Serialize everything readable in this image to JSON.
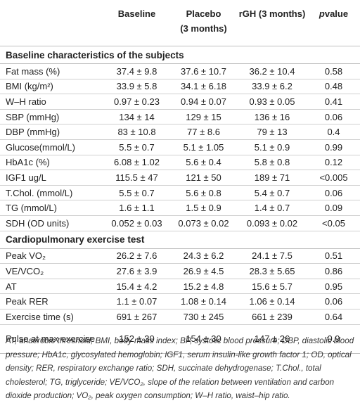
{
  "header": {
    "baseline": "Baseline",
    "placebo": "Placebo\n(3 months)",
    "rgh": "rGH (3 months)",
    "p_italic": "p",
    "p_rest": "value"
  },
  "sections": [
    {
      "title": "Baseline characteristics of the subjects",
      "rows": [
        {
          "name": "Fat mass (%)",
          "baseline": "37.4 ± 9.8",
          "placebo": "37.6 ± 10.7",
          "rgh": "36.2 ± 10.4",
          "p": "0.58"
        },
        {
          "name": "BMI (kg/m²)",
          "baseline": "33.9 ± 5.8",
          "placebo": "34.1 ± 6.18",
          "rgh": "33.9 ± 6.2",
          "p": "0.48"
        },
        {
          "name": "W–H ratio",
          "baseline": "0.97 ± 0.23",
          "placebo": "0.94 ± 0.07",
          "rgh": "0.93 ± 0.05",
          "p": "0.41"
        },
        {
          "name": "SBP (mmHg)",
          "baseline": "134 ± 14",
          "placebo": "129 ± 15",
          "rgh": "136 ± 16",
          "p": "0.06"
        },
        {
          "name": "DBP (mmHg)",
          "baseline": "83 ± 10.8",
          "placebo": "77 ± 8.6",
          "rgh": "79 ± 13",
          "p": "0.4"
        },
        {
          "name": "Glucose(mmol/L)",
          "baseline": "5.5 ± 0.7",
          "placebo": "5.1 ± 1.05",
          "rgh": "5.1 ± 0.9",
          "p": "0.99"
        },
        {
          "name": "HbA1c (%)",
          "baseline": "6.08 ± 1.02",
          "placebo": "5.6 ± 0.4",
          "rgh": "5.8 ± 0.8",
          "p": "0.12"
        },
        {
          "name": "IGF1 ug/L",
          "baseline": "115.5 ± 47",
          "placebo": "121 ± 50",
          "rgh": "189 ± 71",
          "p": "<0.005"
        },
        {
          "name": "T.Chol. (mmol/L)",
          "baseline": "5.5 ± 0.7",
          "placebo": "5.6 ± 0.8",
          "rgh": "5.4 ± 0.7",
          "p": "0.06"
        },
        {
          "name": "TG (mmol/L)",
          "baseline": "1.6 ± 1.1",
          "placebo": "1.5 ± 0.9",
          "rgh": "1.4 ± 0.7",
          "p": "0.09"
        },
        {
          "name": "SDH (OD units)",
          "baseline": "0.052 ± 0.03",
          "placebo": "0.073 ± 0.02",
          "rgh": "0.093 ± 0.02",
          "p": "<0.05"
        }
      ]
    },
    {
      "title": "Cardiopulmonary exercise test",
      "rows": [
        {
          "name": "Peak VO₂",
          "baseline": "26.2 ± 7.6",
          "placebo": "24.3 ± 6.2",
          "rgh": "24.1 ± 7.5",
          "p": "0.51"
        },
        {
          "name": "VE/VCO₂",
          "baseline": "27.6 ± 3.9",
          "placebo": "26.9 ± 4.5",
          "rgh": "28.3 ± 5.65",
          "p": "0.86"
        },
        {
          "name": "AT",
          "baseline": "15.4 ± 4.2",
          "placebo": "15.2 ± 4.8",
          "rgh": "15.6 ± 5.7",
          "p": "0.95"
        },
        {
          "name": "Peak RER",
          "baseline": "1.1 ± 0.07",
          "placebo": "1.08 ± 0.14",
          "rgh": "1.06 ± 0.14",
          "p": "0.06"
        },
        {
          "name": "Exercise time (s)",
          "baseline": "691 ± 267",
          "placebo": "730 ± 245",
          "rgh": "661 ± 239",
          "p": "0.64"
        },
        {
          "name": "Pulse at max exercise",
          "baseline": "152 ± 30",
          "placebo": "154 ± 30",
          "rgh": "147 ± 26",
          "p": "0.9"
        }
      ]
    }
  ],
  "footnote": "AT, anaerobic threshold; BMI, body mass index; BP, systolic blood pressure; DBP, diastolic blood pressure; HbA1c, glycosylated hemoglobin; IGF1, serum insulin-like growth factor 1; OD, optical density; RER, respiratory exchange ratio; SDH, succinate dehydrogenase; T.Chol., total cholesterol; TG, triglyceride; VE/VCO₂, slope of the relation between ventilation and carbon dioxide production; VO₂, peak oxygen consumption; W–H ratio, waist–hip ratio."
}
